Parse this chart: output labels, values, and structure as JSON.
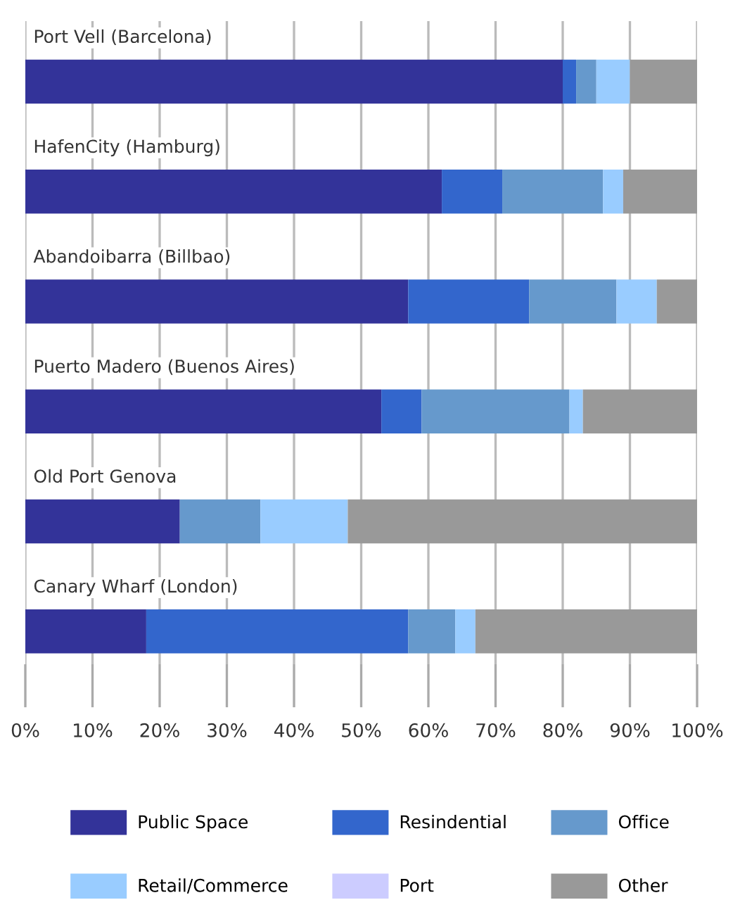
{
  "chart_data": {
    "type": "bar",
    "orientation": "horizontal",
    "stacked": true,
    "categories": [
      "Port Vell (Barcelona)",
      "HafenCity (Hamburg)",
      "Abandoibarra (Billbao)",
      "Puerto Madero (Buenos Aires)",
      "Old Port Genova",
      "Canary Wharf (London)"
    ],
    "series": [
      {
        "name": "Public Space",
        "color": "#333399",
        "values": [
          80,
          62,
          57,
          53,
          23,
          18
        ]
      },
      {
        "name": "Resindential",
        "color": "#3366cc",
        "values": [
          2,
          9,
          18,
          6,
          0,
          39
        ]
      },
      {
        "name": "Office",
        "color": "#6699cc",
        "values": [
          3,
          15,
          13,
          22,
          12,
          7
        ]
      },
      {
        "name": "Retail/Commerce",
        "color": "#99ccff",
        "values": [
          5,
          3,
          6,
          2,
          13,
          3
        ]
      },
      {
        "name": "Port",
        "color": "#ccccff",
        "values": [
          0,
          0,
          0,
          0,
          0,
          0
        ]
      },
      {
        "name": "Other",
        "color": "#999999",
        "values": [
          10,
          11,
          6,
          17,
          52,
          33
        ]
      }
    ],
    "xlim": [
      0,
      100
    ],
    "xticks": [
      {
        "value": 0,
        "label": "0%"
      },
      {
        "value": 10,
        "label": "10%"
      },
      {
        "value": 20,
        "label": "20%"
      },
      {
        "value": 30,
        "label": "30%"
      },
      {
        "value": 40,
        "label": "40%"
      },
      {
        "value": 50,
        "label": "50%"
      },
      {
        "value": 60,
        "label": "60%"
      },
      {
        "value": 70,
        "label": "70%"
      },
      {
        "value": 80,
        "label": "80%"
      },
      {
        "value": 90,
        "label": "90%"
      },
      {
        "value": 100,
        "label": "100%"
      }
    ],
    "grid": "x",
    "legend": "bottom"
  }
}
